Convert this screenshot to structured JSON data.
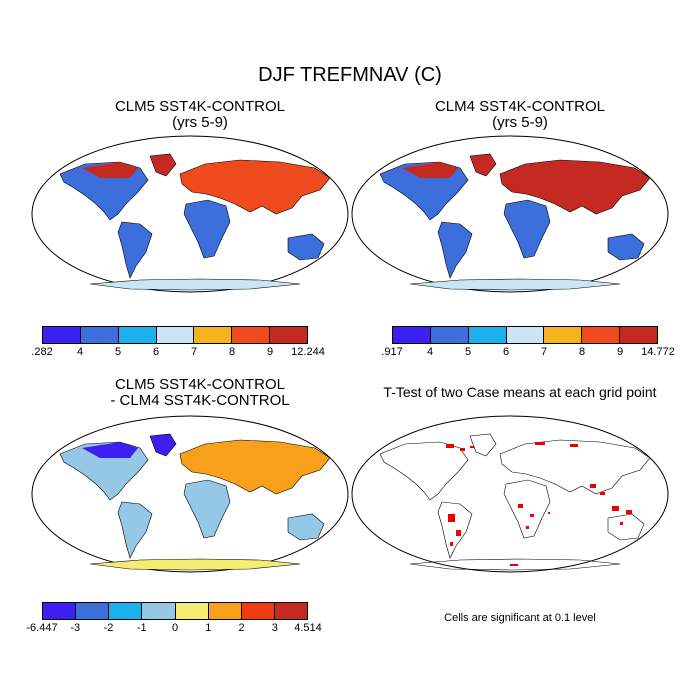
{
  "title": "DJF TREFMNAV (C)",
  "panels": [
    {
      "title_line1": "CLM5 SST4K-CONTROL",
      "title_line2": "(yrs 5-9)",
      "colorbar": {
        "colors": [
          "#3d1ff2",
          "#3c6fdc",
          "#1ab1ee",
          "#c9e6f4",
          "#f7b31e",
          "#ef4a1d",
          "#c42a22"
        ],
        "labels": [
          ".282",
          "4",
          "5",
          "6",
          "7",
          "8",
          "9",
          "12.244"
        ]
      },
      "regions": {
        "arctic": "#c42a22",
        "siberia": "#ef4a1d",
        "tropics": "#3c6fdc",
        "land": "#1ab1ee",
        "antarctica": "#c9e6f4"
      }
    },
    {
      "title_line1": "CLM4 SST4K-CONTROL",
      "title_line2": "(yrs 5-9)",
      "colorbar": {
        "colors": [
          "#3d1ff2",
          "#3c6fdc",
          "#1ab1ee",
          "#c9e6f4",
          "#f7b31e",
          "#ef4a1d",
          "#c42a22"
        ],
        "labels": [
          ".917",
          "4",
          "5",
          "6",
          "7",
          "8",
          "9",
          "14.772"
        ]
      },
      "regions": {
        "arctic": "#c42a22",
        "siberia": "#c42a22",
        "tropics": "#3c6fdc",
        "land": "#1ab1ee",
        "antarctica": "#c9e6f4"
      }
    },
    {
      "title_line1": "CLM5 SST4K-CONTROL",
      "title_line2": "- CLM4 SST4K-CONTROL",
      "colorbar": {
        "colors": [
          "#3d1ff2",
          "#3c6fdc",
          "#1ab1ee",
          "#94c8e6",
          "#f6ec72",
          "#f9a01b",
          "#ef3a12",
          "#c42a22"
        ],
        "labels": [
          "-6.447",
          "-3",
          "-2",
          "-1",
          "0",
          "1",
          "2",
          "3",
          "4.514"
        ]
      },
      "regions": {
        "arctic": "#3d1ff2",
        "siberia": "#f9a01b",
        "tropics": "#94c8e6",
        "land": "#94c8e6",
        "antarctica": "#f6ec72"
      }
    },
    {
      "title_line1": "T-Test of two Case means at each grid point",
      "note": "Cells are significant at 0.1 level",
      "significant_color": "#ee0000"
    }
  ]
}
